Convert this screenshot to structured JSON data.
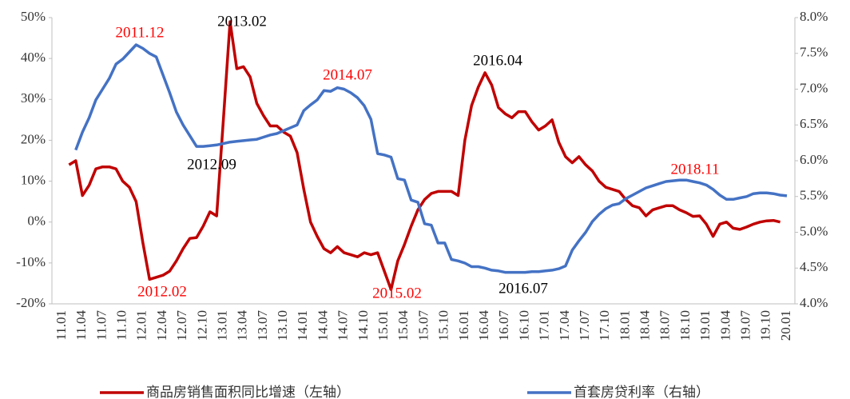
{
  "chart_data": {
    "type": "line",
    "categories": [
      "11.01",
      null,
      null,
      "11.04",
      null,
      null,
      "11.07",
      null,
      null,
      "11.10",
      null,
      null,
      "12.01",
      null,
      null,
      "12.04",
      null,
      null,
      "12.07",
      null,
      null,
      "12.10",
      null,
      null,
      "13.01",
      null,
      null,
      "13.04",
      null,
      null,
      "13.07",
      null,
      null,
      "13.10",
      null,
      null,
      "14.01",
      null,
      null,
      "14.04",
      null,
      null,
      "14.07",
      null,
      null,
      "14.10",
      null,
      null,
      "15.01",
      null,
      null,
      "15.04",
      null,
      null,
      "15.07",
      null,
      null,
      "15.10",
      null,
      null,
      "16.01",
      null,
      null,
      "16.04",
      null,
      null,
      "16.07",
      null,
      null,
      "16.10",
      null,
      null,
      "17.01",
      null,
      null,
      "17.04",
      null,
      null,
      "17.07",
      null,
      null,
      "17.10",
      null,
      null,
      "18.01",
      null,
      null,
      "18.04",
      null,
      null,
      "18.07",
      null,
      null,
      "18.10",
      null,
      null,
      "19.01",
      null,
      null,
      "19.04",
      null,
      null,
      "19.07",
      null,
      null,
      "19.10",
      null,
      null,
      "20.01"
    ],
    "series": [
      {
        "name": "商品房销售面积同比增速（左轴）",
        "color": "#c00000",
        "axis": "y",
        "values": [
          null,
          14,
          15,
          6.5,
          9,
          13,
          13.5,
          13.5,
          13,
          10,
          8.5,
          5,
          -5,
          -14,
          -13.5,
          -13,
          -12,
          -9.5,
          -6.5,
          -4,
          -3.8,
          -1,
          2.5,
          1.5,
          25,
          49,
          37.5,
          38,
          35.5,
          29,
          26,
          23.5,
          23.5,
          22,
          21,
          17,
          8,
          0,
          -3.5,
          -6.5,
          -7.5,
          -6,
          -7.5,
          -8,
          -8.5,
          -7.5,
          -8,
          -7.5,
          -12,
          -16.5,
          -9.5,
          -5.5,
          -1,
          3,
          5.5,
          7,
          7.5,
          7.5,
          7.5,
          6.5,
          20,
          28.5,
          33,
          36.5,
          33.5,
          28,
          26.5,
          25.5,
          27,
          27,
          24.5,
          22.5,
          23.5,
          25,
          19.5,
          16,
          14.5,
          16,
          14,
          12.5,
          10,
          8.5,
          8,
          7.5,
          5.5,
          4,
          3.5,
          1.5,
          3,
          3.5,
          4,
          4,
          3,
          2.3,
          1.4,
          1.5,
          -0.5,
          -3.5,
          -0.5,
          0,
          -1.5,
          -1.8,
          -1.2,
          -0.5,
          0,
          0.3,
          0.4,
          0,
          null
        ]
      },
      {
        "name": "首套房贷利率（右轴）",
        "color": "#4472c4",
        "axis": "y2",
        "values": [
          null,
          null,
          6.15,
          6.4,
          6.6,
          6.85,
          7.0,
          7.15,
          7.35,
          7.42,
          7.52,
          7.62,
          7.57,
          7.5,
          7.45,
          7.2,
          6.95,
          6.68,
          6.5,
          6.35,
          6.2,
          6.2,
          6.21,
          6.22,
          6.24,
          6.26,
          6.27,
          6.28,
          6.29,
          6.3,
          6.33,
          6.36,
          6.38,
          6.42,
          6.46,
          6.5,
          6.7,
          6.78,
          6.85,
          6.98,
          6.97,
          7.02,
          7.0,
          6.95,
          6.88,
          6.77,
          6.58,
          6.1,
          6.08,
          6.05,
          5.75,
          5.73,
          5.45,
          5.42,
          5.12,
          5.1,
          4.85,
          4.85,
          4.62,
          4.6,
          4.57,
          4.52,
          4.52,
          4.5,
          4.47,
          4.46,
          4.44,
          4.44,
          4.44,
          4.44,
          4.45,
          4.45,
          4.46,
          4.47,
          4.49,
          4.53,
          4.75,
          4.88,
          5.0,
          5.15,
          5.25,
          5.33,
          5.38,
          5.4,
          5.47,
          5.52,
          5.57,
          5.62,
          5.65,
          5.68,
          5.71,
          5.72,
          5.73,
          5.73,
          5.71,
          5.69,
          5.66,
          5.6,
          5.52,
          5.46,
          5.46,
          5.48,
          5.5,
          5.54,
          5.55,
          5.55,
          5.54,
          5.52,
          5.51
        ]
      }
    ],
    "ylim": [
      -20,
      50
    ],
    "yticks": [
      {
        "value": -20,
        "label": "-20%"
      },
      {
        "value": -10,
        "label": "-10%"
      },
      {
        "value": 0,
        "label": "0%"
      },
      {
        "value": 10,
        "label": "10%"
      },
      {
        "value": 20,
        "label": "20%"
      },
      {
        "value": 30,
        "label": "30%"
      },
      {
        "value": 40,
        "label": "40%"
      },
      {
        "value": 50,
        "label": "50%"
      }
    ],
    "y2lim": [
      4,
      8
    ],
    "y2ticks": [
      {
        "value": 4,
        "label": "4.0%"
      },
      {
        "value": 4.5,
        "label": "4.5%"
      },
      {
        "value": 5,
        "label": "5.0%"
      },
      {
        "value": 5.5,
        "label": "5.5%"
      },
      {
        "value": 6,
        "label": "6.0%"
      },
      {
        "value": 6.5,
        "label": "6.5%"
      },
      {
        "value": 7,
        "label": "7.0%"
      },
      {
        "value": 7.5,
        "label": "7.5%"
      },
      {
        "value": 8,
        "label": "8.0%"
      }
    ],
    "grid": false,
    "legend": "bottom",
    "annotations": [
      {
        "text": "2011.12",
        "color": "#ff0000"
      },
      {
        "text": "2013.02",
        "color": "#000000"
      },
      {
        "text": "2014.07",
        "color": "#ff0000"
      },
      {
        "text": "2016.04",
        "color": "#000000"
      },
      {
        "text": "2012.09",
        "color": "#000000"
      },
      {
        "text": "2012.02",
        "color": "#ff0000"
      },
      {
        "text": "2015.02",
        "color": "#ff0000"
      },
      {
        "text": "2016.07",
        "color": "#000000"
      },
      {
        "text": "2018.11",
        "color": "#ff0000"
      }
    ]
  }
}
